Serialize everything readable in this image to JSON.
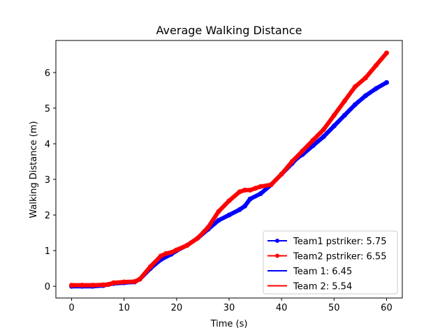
{
  "chart_data": {
    "type": "line",
    "title": "Average Walking Distance",
    "xlabel": "Time (s)",
    "ylabel": "Walking Distance (m)",
    "xlim": [
      -3,
      63
    ],
    "ylim": [
      -0.33,
      6.9
    ],
    "xticks": [
      0,
      10,
      20,
      30,
      40,
      50,
      60
    ],
    "yticks": [
      0,
      1,
      2,
      3,
      4,
      5,
      6
    ],
    "grid": false,
    "legend_position": "lower right",
    "series": [
      {
        "name": "Team1 pstriker: 5.75",
        "color": "#0000ff",
        "style": "thick-dots",
        "x": [
          0,
          2,
          4,
          6,
          7,
          8,
          10,
          12,
          13,
          15,
          17,
          19,
          20,
          22,
          24,
          26,
          28,
          30,
          32,
          33,
          34,
          36,
          38,
          40,
          42,
          43,
          44,
          46,
          48,
          50,
          52,
          54,
          56,
          58,
          60
        ],
        "y": [
          0,
          0,
          0,
          0.02,
          0.05,
          0.08,
          0.1,
          0.12,
          0.2,
          0.5,
          0.75,
          0.9,
          1.0,
          1.15,
          1.35,
          1.6,
          1.85,
          2.0,
          2.15,
          2.25,
          2.45,
          2.6,
          2.85,
          3.15,
          3.45,
          3.6,
          3.7,
          3.95,
          4.2,
          4.5,
          4.8,
          5.1,
          5.35,
          5.55,
          5.72
        ]
      },
      {
        "name": "Team2 pstriker: 6.55",
        "color": "#ff0000",
        "style": "thick-dots",
        "x": [
          0,
          2,
          4,
          6,
          7,
          8,
          10,
          12,
          13,
          15,
          17,
          18,
          19,
          20,
          22,
          24,
          26,
          28,
          30,
          32,
          33,
          34,
          35,
          36,
          38,
          40,
          42,
          44,
          46,
          48,
          50,
          52,
          54,
          56,
          58,
          60
        ],
        "y": [
          0.03,
          0.03,
          0.03,
          0.04,
          0.05,
          0.1,
          0.12,
          0.13,
          0.2,
          0.55,
          0.85,
          0.92,
          0.95,
          1.02,
          1.15,
          1.35,
          1.65,
          2.1,
          2.4,
          2.65,
          2.7,
          2.7,
          2.75,
          2.8,
          2.85,
          3.15,
          3.5,
          3.8,
          4.1,
          4.4,
          4.8,
          5.2,
          5.6,
          5.85,
          6.2,
          6.55
        ]
      }
    ],
    "legend": [
      {
        "label": "Team1 pstriker: 5.75",
        "color": "#0000ff",
        "marker": true
      },
      {
        "label": "Team2 pstriker: 6.55",
        "color": "#ff0000",
        "marker": true
      },
      {
        "label": "Team 1: 6.45",
        "color": "#0000ff",
        "marker": false
      },
      {
        "label": "Team 2: 5.54",
        "color": "#ff0000",
        "marker": false
      }
    ]
  }
}
